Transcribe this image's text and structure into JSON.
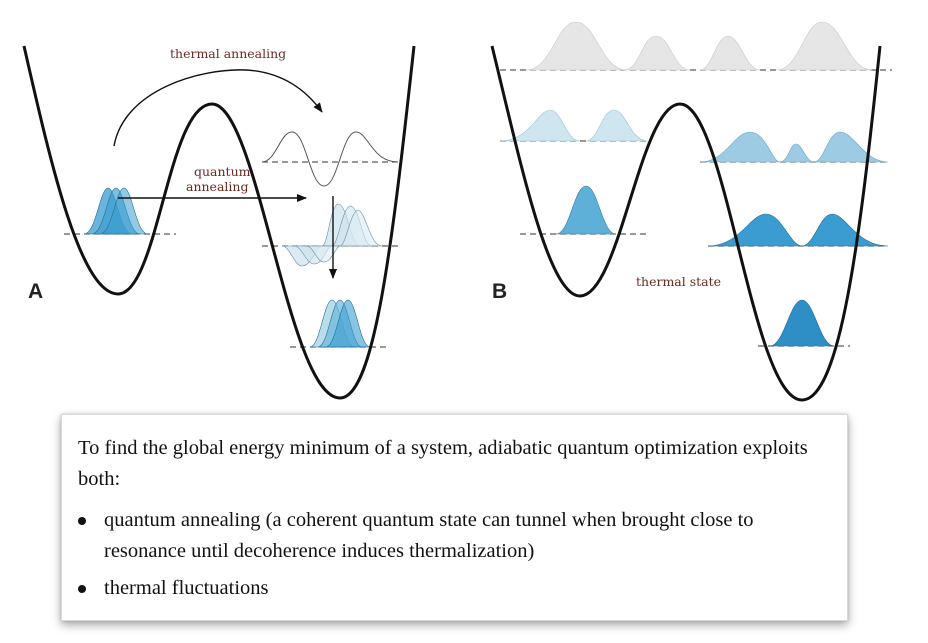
{
  "panel_a": {
    "letter": "A",
    "thermal_label": "thermal annealing",
    "quantum_label_line1": "quantum",
    "quantum_label_line2": "annealing"
  },
  "panel_b": {
    "letter": "B",
    "thermal_state_label": "thermal state"
  },
  "caption": {
    "intro": "To find the global energy minimum of a system, adiabatic quantum optimization exploits both:",
    "bullets": [
      "quantum annealing (a coherent quantum state can tunnel when brought close to resonance until decoherence induces thermalization)",
      "thermal fluctuations"
    ]
  },
  "colors": {
    "curve": "#111111",
    "wave_dark": "#3a9cd0",
    "wave_light": "#a9d3e6",
    "wave_grey": "#e6e6e6",
    "label": "#6b2a22"
  }
}
